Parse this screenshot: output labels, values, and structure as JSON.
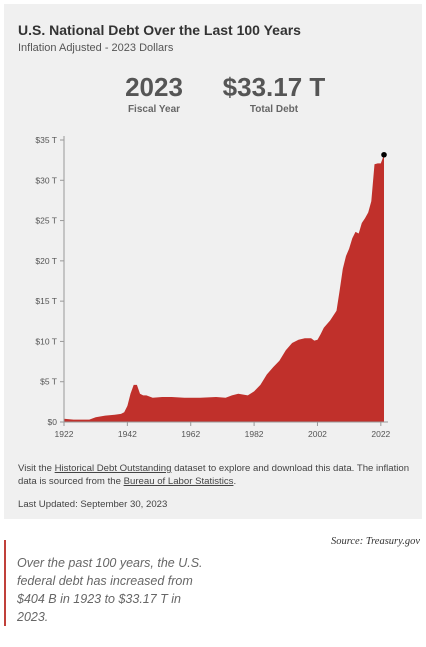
{
  "header": {
    "title": "U.S. National Debt Over the Last 100 Years",
    "subtitle": "Inflation Adjusted - 2023 Dollars"
  },
  "stats": {
    "year_value": "2023",
    "year_label": "Fiscal Year",
    "debt_value": "$33.17 T",
    "debt_label": "Total Debt"
  },
  "chart_data": {
    "type": "area",
    "title": "",
    "xlabel": "",
    "ylabel": "",
    "xlim": [
      1922,
      2023
    ],
    "ylim": [
      0,
      35
    ],
    "yticks": [
      0,
      5,
      10,
      15,
      20,
      25,
      30,
      35
    ],
    "ytick_labels": [
      "$0",
      "$5 T",
      "$10 T",
      "$15 T",
      "$20 T",
      "$25 T",
      "$30 T",
      "$35 T"
    ],
    "xticks": [
      1922,
      1942,
      1962,
      1982,
      2002,
      2022
    ],
    "xtick_labels": [
      "1922",
      "1942",
      "1962",
      "1982",
      "2002",
      "2022"
    ],
    "grid": false,
    "fill_color": "#c0302b",
    "x": [
      1922,
      1925,
      1930,
      1932,
      1935,
      1938,
      1940,
      1941,
      1942,
      1943,
      1944,
      1945,
      1946,
      1947,
      1948,
      1950,
      1953,
      1956,
      1960,
      1965,
      1970,
      1973,
      1975,
      1977,
      1980,
      1982,
      1984,
      1986,
      1988,
      1990,
      1992,
      1994,
      1996,
      1998,
      2000,
      2001,
      2002,
      2003,
      2004,
      2006,
      2008,
      2009,
      2010,
      2011,
      2012,
      2013,
      2014,
      2015,
      2016,
      2017,
      2018,
      2019,
      2020,
      2021,
      2022,
      2023
    ],
    "values": [
      0.4,
      0.3,
      0.3,
      0.6,
      0.8,
      0.9,
      1.0,
      1.2,
      2.0,
      3.5,
      4.6,
      4.6,
      3.5,
      3.3,
      3.3,
      3.0,
      3.1,
      3.1,
      3.0,
      3.0,
      3.1,
      3.0,
      3.3,
      3.5,
      3.3,
      3.8,
      4.6,
      5.9,
      6.8,
      7.6,
      8.9,
      9.8,
      10.2,
      10.4,
      10.4,
      10.1,
      10.2,
      10.9,
      11.7,
      12.6,
      13.8,
      16.3,
      19.0,
      20.6,
      21.5,
      22.8,
      23.6,
      23.4,
      24.7,
      25.3,
      26.0,
      27.4,
      32.0,
      32.1,
      32.1,
      33.17
    ],
    "highlight_point": {
      "x": 2023,
      "y": 33.17
    }
  },
  "note": {
    "prefix": "Visit the ",
    "link1": "Historical Debt Outstanding",
    "middle": " dataset to explore and download this data. The inflation data is sourced from the ",
    "link2": "Bureau of Labor Statistics",
    "suffix": "."
  },
  "updated": "Last Updated: September 30, 2023",
  "source": "Source: Treasury.gov",
  "quote": "Over the past 100 years, the U.S. federal debt has increased from $404 B in 1923 to $33.17 T in 2023."
}
